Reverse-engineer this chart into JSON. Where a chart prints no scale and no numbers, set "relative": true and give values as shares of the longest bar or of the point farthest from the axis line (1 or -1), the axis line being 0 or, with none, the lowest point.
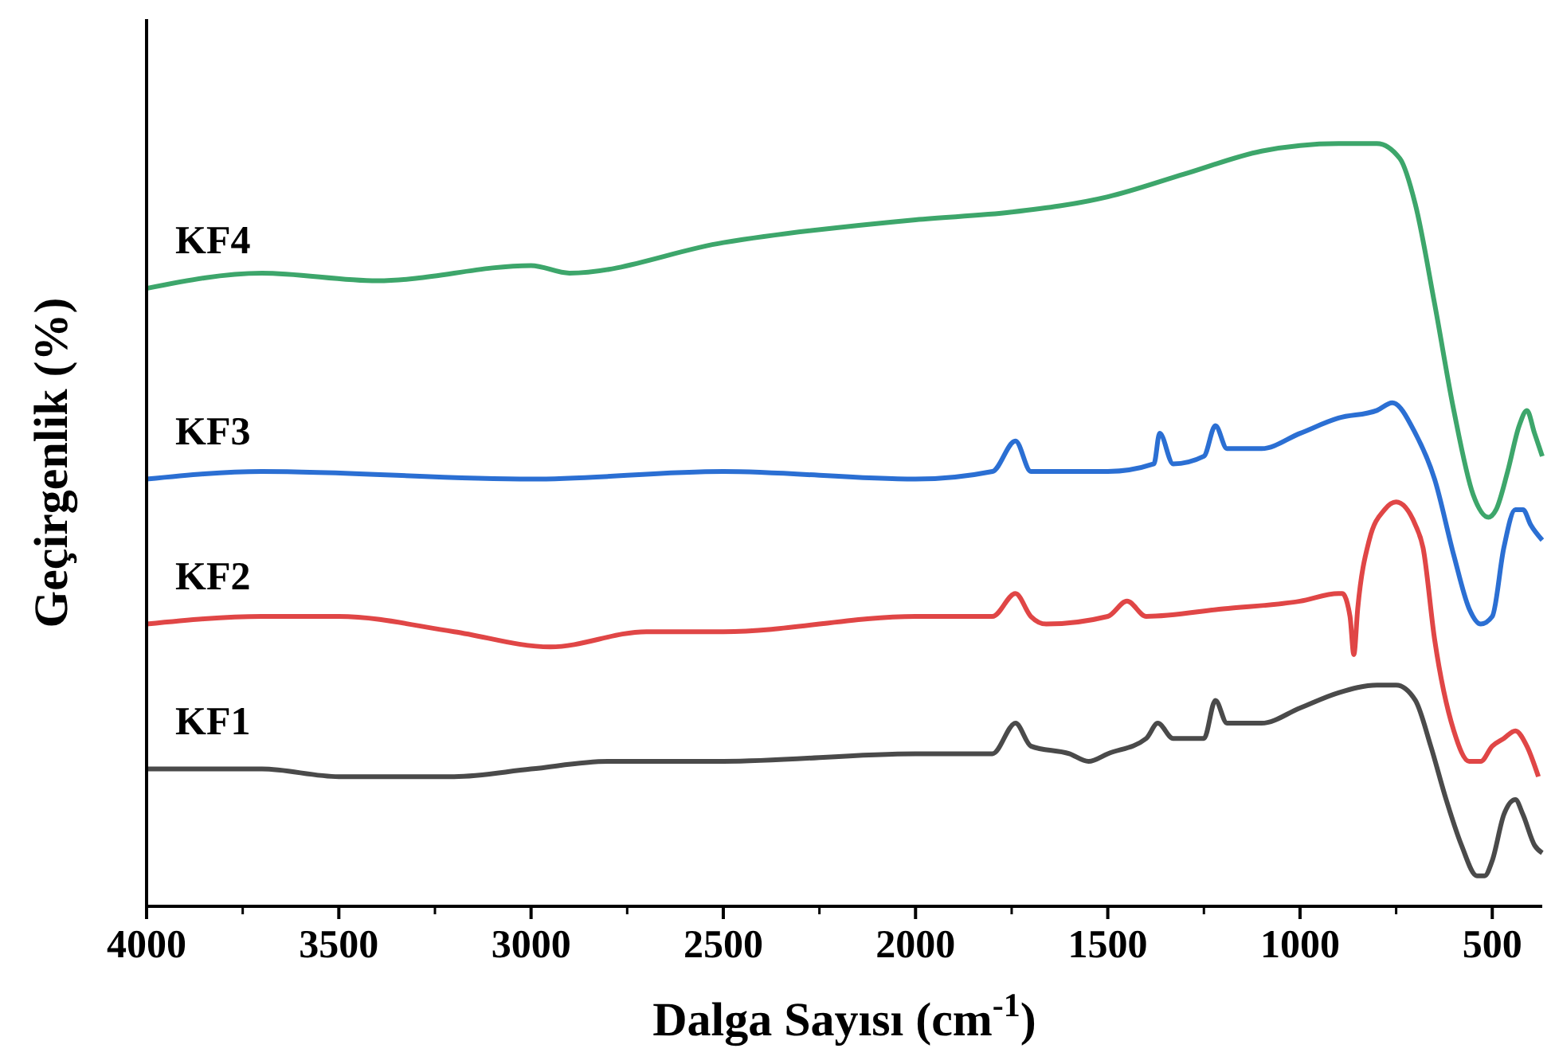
{
  "chart_data": {
    "type": "line",
    "relative": true,
    "xlabel": "Dalga Sayısı (cm$^{-1}$)",
    "ylabel": "Geçirgenlik (%)",
    "xlim": [
      4000,
      370
    ],
    "xticks": [
      4000,
      3500,
      3000,
      2500,
      2000,
      1500,
      1000,
      500
    ],
    "line_style": "solid",
    "series": [
      {
        "name": "KF4",
        "color": "#3da66b",
        "x": [
          4000,
          3700,
          3400,
          3000,
          2900,
          2500,
          2000,
          1750,
          1500,
          1300,
          1100,
          900,
          800,
          740,
          700,
          650,
          600,
          550,
          510,
          490,
          460,
          430,
          410,
          390,
          370
        ],
        "values": [
          0.81,
          0.83,
          0.82,
          0.84,
          0.83,
          0.87,
          0.9,
          0.91,
          0.93,
          0.96,
          0.99,
          1.0,
          1.0,
          0.98,
          0.92,
          0.79,
          0.65,
          0.54,
          0.51,
          0.52,
          0.57,
          0.63,
          0.65,
          0.62,
          0.59
        ]
      },
      {
        "name": "KF3",
        "color": "#2b6fd3",
        "x": [
          4000,
          3700,
          3000,
          2500,
          2000,
          1800,
          1740,
          1700,
          1500,
          1380,
          1365,
          1330,
          1250,
          1220,
          1190,
          1100,
          1000,
          900,
          800,
          760,
          700,
          650,
          600,
          560,
          530,
          500,
          470,
          440,
          420,
          400,
          370
        ],
        "values": [
          0.56,
          0.57,
          0.56,
          0.57,
          0.56,
          0.57,
          0.61,
          0.57,
          0.57,
          0.58,
          0.62,
          0.58,
          0.59,
          0.63,
          0.6,
          0.6,
          0.62,
          0.64,
          0.65,
          0.66,
          0.62,
          0.56,
          0.46,
          0.39,
          0.37,
          0.38,
          0.47,
          0.52,
          0.52,
          0.5,
          0.48
        ]
      },
      {
        "name": "KF2",
        "color": "#e04646",
        "x": [
          4000,
          3700,
          3500,
          3200,
          2950,
          2700,
          2500,
          2000,
          1800,
          1740,
          1700,
          1660,
          1500,
          1450,
          1400,
          1200,
          1000,
          900,
          890,
          870,
          860,
          850,
          820,
          780,
          750,
          700,
          680,
          650,
          600,
          560,
          530,
          500,
          470,
          440,
          410,
          380
        ],
        "values": [
          0.37,
          0.38,
          0.38,
          0.36,
          0.34,
          0.36,
          0.36,
          0.38,
          0.38,
          0.41,
          0.38,
          0.37,
          0.38,
          0.4,
          0.38,
          0.39,
          0.4,
          0.41,
          0.41,
          0.38,
          0.33,
          0.39,
          0.48,
          0.52,
          0.53,
          0.5,
          0.47,
          0.35,
          0.23,
          0.19,
          0.19,
          0.21,
          0.22,
          0.23,
          0.21,
          0.17
        ]
      },
      {
        "name": "KF1",
        "color": "#4a4a4a",
        "x": [
          4000,
          3700,
          3500,
          3200,
          3000,
          2800,
          2500,
          2000,
          1800,
          1740,
          1700,
          1600,
          1550,
          1500,
          1400,
          1370,
          1330,
          1250,
          1220,
          1190,
          1100,
          1000,
          900,
          800,
          750,
          700,
          660,
          620,
          580,
          540,
          520,
          500,
          470,
          440,
          420,
          390,
          370
        ],
        "values": [
          0.18,
          0.18,
          0.17,
          0.17,
          0.18,
          0.19,
          0.19,
          0.2,
          0.2,
          0.24,
          0.21,
          0.2,
          0.19,
          0.2,
          0.22,
          0.24,
          0.22,
          0.22,
          0.27,
          0.24,
          0.24,
          0.26,
          0.28,
          0.29,
          0.29,
          0.27,
          0.21,
          0.14,
          0.08,
          0.04,
          0.04,
          0.06,
          0.12,
          0.14,
          0.12,
          0.08,
          0.07
        ]
      }
    ]
  }
}
